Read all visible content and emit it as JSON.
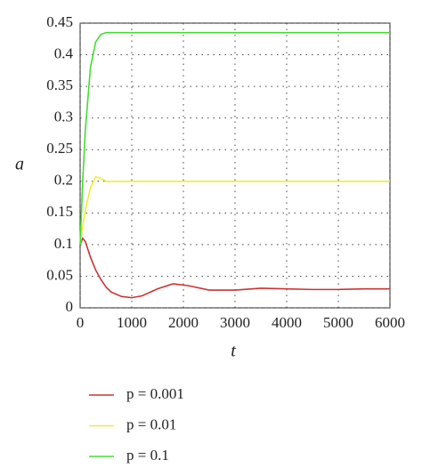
{
  "chart_data": {
    "type": "line",
    "x_label": "t",
    "y_label": "a",
    "x": [
      0,
      50,
      100,
      200,
      300,
      400,
      500,
      600,
      800,
      1000,
      1200,
      1500,
      1800,
      2100,
      2500,
      3000,
      3500,
      4000,
      4500,
      5000,
      5500,
      6000
    ],
    "series": [
      {
        "name": "p = 0.001",
        "color": "#cc3333",
        "values": [
          0.1,
          0.11,
          0.105,
          0.08,
          0.06,
          0.045,
          0.033,
          0.025,
          0.018,
          0.016,
          0.019,
          0.03,
          0.038,
          0.035,
          0.028,
          0.028,
          0.031,
          0.03,
          0.029,
          0.029,
          0.03,
          0.03
        ]
      },
      {
        "name": "p = 0.01",
        "color": "#eeee33",
        "values": [
          0.1,
          0.13,
          0.155,
          0.19,
          0.207,
          0.205,
          0.2,
          0.2,
          0.2,
          0.2,
          0.2,
          0.2,
          0.2,
          0.2,
          0.2,
          0.2,
          0.2,
          0.2,
          0.2,
          0.2,
          0.2,
          0.2
        ]
      },
      {
        "name": "p = 0.1",
        "color": "#44dd33",
        "values": [
          0.1,
          0.2,
          0.28,
          0.38,
          0.42,
          0.432,
          0.435,
          0.435,
          0.435,
          0.435,
          0.435,
          0.435,
          0.435,
          0.435,
          0.435,
          0.435,
          0.435,
          0.435,
          0.435,
          0.435,
          0.435,
          0.435
        ]
      }
    ],
    "xlim": [
      0,
      6000
    ],
    "xticks": [
      0,
      1000,
      2000,
      3000,
      4000,
      5000,
      6000
    ],
    "ylim": [
      0,
      0.45
    ],
    "yticks": [
      0,
      0.05,
      0.1,
      0.15,
      0.2,
      0.25,
      0.3,
      0.35,
      0.4,
      0.45
    ],
    "grid": true
  }
}
